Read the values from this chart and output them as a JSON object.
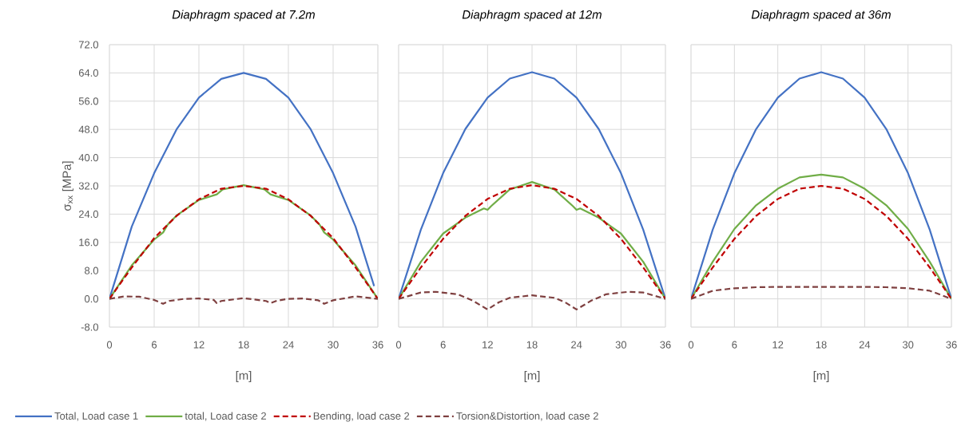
{
  "chart_data": [
    {
      "type": "line",
      "title": "Diaphragm spaced at 7.2m",
      "xlabel": "[m]",
      "ylabel": "σ$_{xx}$ [MPa]",
      "xlim": [
        0,
        36
      ],
      "ylim": [
        -8,
        72
      ],
      "xticks": [
        0,
        6,
        12,
        18,
        24,
        30,
        36
      ],
      "yticks": [
        {
          "value": -8,
          "label": "-8.0"
        },
        {
          "value": 0,
          "label": "0.0"
        },
        {
          "value": 8,
          "label": "8.0"
        },
        {
          "value": 16,
          "label": "16.0"
        },
        {
          "value": 24,
          "label": "24.0"
        },
        {
          "value": 32,
          "label": "32.0"
        },
        {
          "value": 40,
          "label": "40.0"
        },
        {
          "value": 48,
          "label": "48.0"
        },
        {
          "value": 56,
          "label": "56.0"
        },
        {
          "value": 64,
          "label": "64.0"
        },
        {
          "value": 72,
          "label": "72.0"
        }
      ],
      "grid": true,
      "legend": "bottom",
      "marker": "none",
      "series": [
        {
          "name": "Total, Load case 1",
          "color": "#4472c4",
          "line_style": "solid",
          "x": [
            0,
            3,
            6,
            9,
            12,
            15,
            18,
            21,
            24,
            27,
            30,
            33,
            35.5
          ],
          "values": [
            0,
            20.5,
            35.6,
            48,
            57,
            62.3,
            64,
            62.3,
            57,
            48,
            35.6,
            20.5,
            3.6
          ]
        },
        {
          "name": "total, Load case 2",
          "color": "#70ad47",
          "line_style": "solid",
          "x": [
            0,
            3,
            6,
            7.2,
            7.8,
            9,
            12,
            14.4,
            15.2,
            18,
            20.8,
            21.6,
            24,
            27,
            28.2,
            28.8,
            30,
            33,
            36
          ],
          "values": [
            0,
            9.5,
            16.8,
            18.8,
            21,
            23.6,
            28,
            29.6,
            31,
            32.2,
            31,
            29.6,
            28,
            23.6,
            21,
            18.8,
            16.8,
            9.5,
            0
          ]
        },
        {
          "name": "Bending, load case 2",
          "color": "#c00000",
          "line_style": "dashed",
          "x": [
            0,
            3,
            6,
            9,
            12,
            15,
            18,
            21,
            24,
            27,
            30,
            33,
            36
          ],
          "values": [
            0,
            8.9,
            17.2,
            23.5,
            28.2,
            31.2,
            32,
            31.2,
            28.2,
            23.5,
            17.2,
            8.9,
            0
          ]
        },
        {
          "name": "Torsion&Distortion, load case 2",
          "color": "#7f4040",
          "line_style": "dashed",
          "x": [
            0,
            2,
            4,
            6,
            7.2,
            8,
            10,
            12,
            14,
            14.4,
            15,
            18,
            21,
            21.6,
            22.5,
            24,
            26,
            28,
            28.8,
            30,
            33,
            36
          ],
          "values": [
            0,
            0.7,
            0.6,
            -0.3,
            -1.4,
            -0.6,
            0,
            0.1,
            -0.3,
            -1.2,
            -0.6,
            0.2,
            -0.6,
            -1.2,
            -0.5,
            0,
            0.1,
            -0.4,
            -1.4,
            -0.4,
            0.7,
            0
          ]
        }
      ]
    },
    {
      "type": "line",
      "title": "Diaphragm spaced at 12m",
      "xlabel": "[m]",
      "xlim": [
        0,
        36
      ],
      "ylim": [
        -8,
        72
      ],
      "xticks": [
        0,
        6,
        12,
        18,
        24,
        30,
        36
      ],
      "yticks": [
        -8,
        0,
        8,
        16,
        24,
        32,
        40,
        48,
        56,
        64,
        72
      ],
      "tick_labels": "x",
      "grid": true,
      "marker": "none",
      "series": [
        {
          "color": "#4472c4",
          "line_style": "solid",
          "x": [
            0,
            3,
            6,
            9,
            12,
            15,
            18,
            21,
            24,
            27,
            30,
            33,
            36
          ],
          "values": [
            0,
            19.6,
            35.6,
            48.1,
            57,
            62.4,
            64.2,
            62.4,
            57,
            48.1,
            35.6,
            19.6,
            0
          ]
        },
        {
          "color": "#70ad47",
          "line_style": "solid",
          "x": [
            0,
            3,
            6,
            9,
            11.5,
            12,
            12.5,
            15,
            18,
            21,
            23.5,
            24,
            24.5,
            27,
            30,
            33,
            36
          ],
          "values": [
            0,
            10.5,
            18.5,
            23,
            25.6,
            25.2,
            26.3,
            31,
            33.1,
            31,
            26.3,
            25.2,
            25.6,
            23,
            18.5,
            10.5,
            0
          ]
        },
        {
          "color": "#c00000",
          "line_style": "dashed",
          "x": [
            0,
            3,
            6,
            9,
            12,
            15,
            18,
            21,
            24,
            27,
            30,
            33,
            36
          ],
          "values": [
            0,
            8.9,
            17,
            23.5,
            28.3,
            31.2,
            32.2,
            31.2,
            28.3,
            23.5,
            17,
            8.9,
            0
          ]
        },
        {
          "color": "#7f4040",
          "line_style": "dashed",
          "x": [
            0,
            3,
            5,
            8,
            10,
            12,
            13.5,
            15,
            18,
            21,
            22.5,
            24,
            26,
            28,
            31,
            33,
            36
          ],
          "values": [
            0,
            1.8,
            2,
            1.3,
            -0.5,
            -3,
            -1,
            0.3,
            1,
            0.3,
            -1,
            -3,
            -0.5,
            1.3,
            2,
            1.8,
            0
          ]
        }
      ]
    },
    {
      "type": "line",
      "title": "Diaphragm spaced at 36m",
      "xlabel": "[m]",
      "xlim": [
        0,
        36
      ],
      "ylim": [
        -8,
        72
      ],
      "xticks": [
        0,
        6,
        12,
        18,
        24,
        30,
        36
      ],
      "yticks": [
        -8,
        0,
        8,
        16,
        24,
        32,
        40,
        48,
        56,
        64,
        72
      ],
      "tick_labels": "x",
      "grid": true,
      "marker": "none",
      "series": [
        {
          "color": "#4472c4",
          "line_style": "solid",
          "x": [
            0,
            3,
            6,
            9,
            12,
            15,
            18,
            21,
            24,
            27,
            30,
            33,
            36
          ],
          "values": [
            0,
            19.6,
            35.6,
            48.1,
            57,
            62.4,
            64.2,
            62.4,
            57,
            48.1,
            35.6,
            19.6,
            0
          ]
        },
        {
          "color": "#70ad47",
          "line_style": "solid",
          "x": [
            0,
            3,
            6,
            9,
            12,
            15,
            18,
            21,
            24,
            27,
            30,
            33,
            36
          ],
          "values": [
            0,
            10.5,
            19.8,
            26.5,
            31.2,
            34.4,
            35.2,
            34.4,
            31.2,
            26.5,
            19.8,
            10.5,
            0
          ]
        },
        {
          "color": "#c00000",
          "line_style": "dashed",
          "x": [
            0,
            3,
            6,
            9,
            12,
            15,
            18,
            21,
            24,
            27,
            30,
            33,
            36
          ],
          "values": [
            0,
            8.9,
            17,
            23.5,
            28.3,
            31.2,
            32,
            31.2,
            28.3,
            23.5,
            17,
            8.9,
            0
          ]
        },
        {
          "color": "#7f4040",
          "line_style": "dashed",
          "x": [
            0,
            3,
            6,
            9,
            12,
            18,
            24,
            27,
            30,
            33,
            36
          ],
          "values": [
            0,
            2.3,
            3,
            3.3,
            3.4,
            3.4,
            3.4,
            3.3,
            3,
            2.3,
            0
          ]
        }
      ]
    }
  ]
}
